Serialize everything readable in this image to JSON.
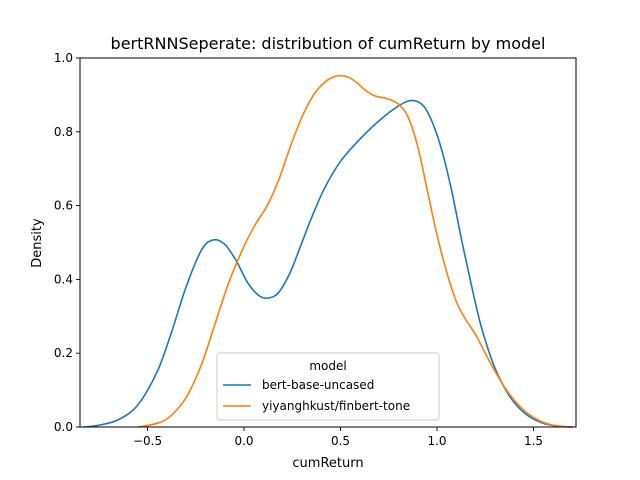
{
  "chart_data": {
    "type": "line",
    "title": "bertRNNSeperate: distribution of cumReturn by model",
    "xlabel": "cumReturn",
    "ylabel": "Density",
    "xlim": [
      -0.85,
      1.72
    ],
    "ylim": [
      0,
      1.0
    ],
    "x_ticks": [
      -0.5,
      0.0,
      0.5,
      1.0,
      1.5
    ],
    "x_tick_labels": [
      "−0.5",
      "0.0",
      "0.5",
      "1.0",
      "1.5"
    ],
    "y_ticks": [
      0.0,
      0.2,
      0.4,
      0.6,
      0.8,
      1.0
    ],
    "y_tick_labels": [
      "0.0",
      "0.2",
      "0.4",
      "0.6",
      "0.8",
      "1.0"
    ],
    "grid": false,
    "legend": {
      "title": "model",
      "placement": "lower-center"
    },
    "series": [
      {
        "name": "bert-base-uncased",
        "color": "#1f77b4",
        "x": [
          -0.83,
          -0.75,
          -0.65,
          -0.55,
          -0.45,
          -0.38,
          -0.3,
          -0.22,
          -0.16,
          -0.1,
          -0.04,
          0.02,
          0.08,
          0.13,
          0.18,
          0.24,
          0.3,
          0.36,
          0.42,
          0.5,
          0.6,
          0.7,
          0.8,
          0.87,
          0.93,
          0.98,
          1.03,
          1.08,
          1.13,
          1.18,
          1.23,
          1.3,
          1.38,
          1.46,
          1.55,
          1.63,
          1.7
        ],
        "y": [
          0.0,
          0.005,
          0.02,
          0.06,
          0.15,
          0.25,
          0.38,
          0.48,
          0.507,
          0.495,
          0.45,
          0.39,
          0.355,
          0.35,
          0.365,
          0.42,
          0.5,
          0.58,
          0.65,
          0.72,
          0.78,
          0.83,
          0.87,
          0.885,
          0.87,
          0.82,
          0.74,
          0.63,
          0.5,
          0.38,
          0.27,
          0.16,
          0.08,
          0.035,
          0.01,
          0.002,
          0.0
        ]
      },
      {
        "name": "yiyanghkust/finbert-tone",
        "color": "#ff7f0e",
        "x": [
          -0.55,
          -0.45,
          -0.38,
          -0.3,
          -0.22,
          -0.15,
          -0.08,
          0.0,
          0.06,
          0.12,
          0.18,
          0.24,
          0.3,
          0.36,
          0.42,
          0.47,
          0.5,
          0.54,
          0.58,
          0.63,
          0.68,
          0.74,
          0.8,
          0.85,
          0.9,
          0.95,
          1.0,
          1.05,
          1.1,
          1.15,
          1.2,
          1.28,
          1.36,
          1.44,
          1.52,
          1.6,
          1.7
        ],
        "y": [
          0.0,
          0.01,
          0.03,
          0.08,
          0.17,
          0.28,
          0.39,
          0.49,
          0.55,
          0.6,
          0.67,
          0.76,
          0.84,
          0.9,
          0.935,
          0.95,
          0.952,
          0.948,
          0.935,
          0.912,
          0.897,
          0.89,
          0.875,
          0.84,
          0.76,
          0.64,
          0.52,
          0.42,
          0.34,
          0.29,
          0.25,
          0.17,
          0.1,
          0.05,
          0.02,
          0.005,
          0.0
        ]
      }
    ]
  }
}
